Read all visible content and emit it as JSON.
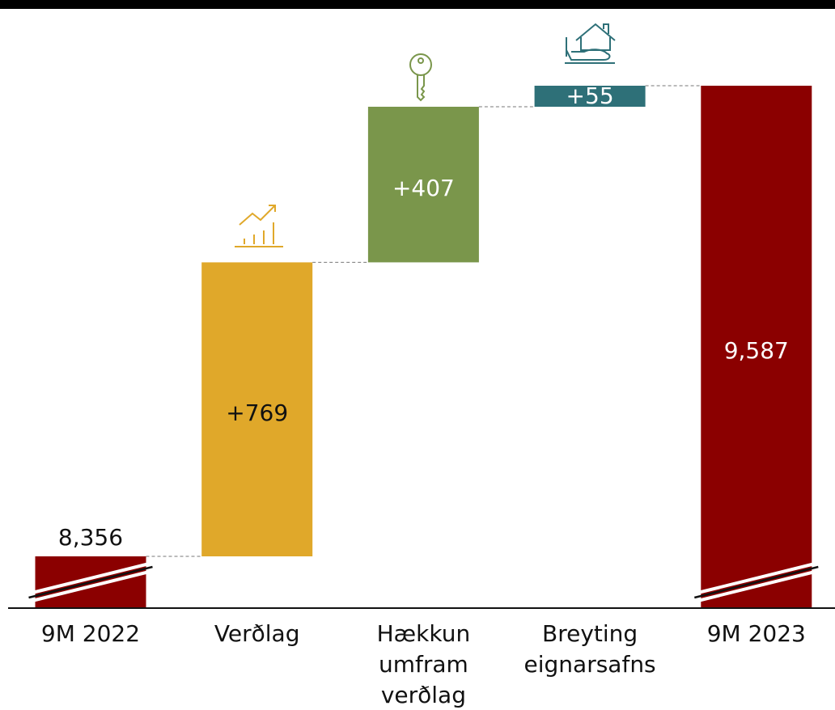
{
  "chart_data": {
    "type": "waterfall",
    "categories": [
      "9M 2022",
      "Verðlag",
      "Hækkun umfram verðlag",
      "Breyting eignarsafns",
      "9M 2023"
    ],
    "values": [
      8356,
      769,
      407,
      55,
      9587
    ],
    "value_labels": [
      "8,356",
      "+769",
      "+407",
      "+55",
      "9,587"
    ],
    "colors": [
      "#8b0000",
      "#e0a82a",
      "#7a964b",
      "#2e7078",
      "#8b0000"
    ]
  }
}
